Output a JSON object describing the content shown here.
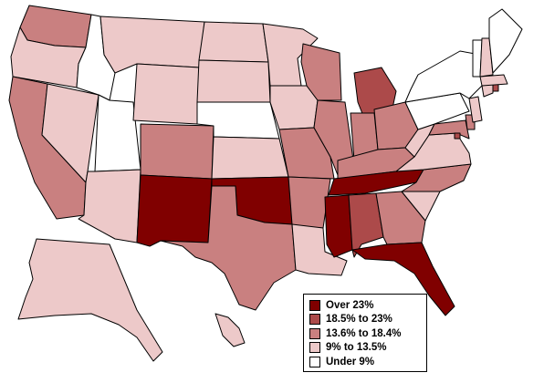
{
  "colors": {
    "over_23": "#800000",
    "r18_23": "#ac4a4a",
    "r13_18": "#c98080",
    "r9_13": "#edc9c9",
    "under_9": "#ffffff"
  },
  "legend": {
    "items": [
      {
        "label": "Over 23%",
        "color": "#800000"
      },
      {
        "label": "18.5% to 23%",
        "color": "#ac4a4a"
      },
      {
        "label": "13.6% to 18.4%",
        "color": "#c98080"
      },
      {
        "label": "9% to 13.5%",
        "color": "#edc9c9"
      },
      {
        "label": "Under 9%",
        "color": "#ffffff"
      }
    ]
  },
  "states": [
    {
      "name": "WA",
      "category": "r13_18"
    },
    {
      "name": "OR",
      "category": "r9_13"
    },
    {
      "name": "CA",
      "category": "r13_18"
    },
    {
      "name": "NV",
      "category": "r9_13"
    },
    {
      "name": "ID",
      "category": "under_9"
    },
    {
      "name": "UT",
      "category": "under_9"
    },
    {
      "name": "AZ",
      "category": "r9_13"
    },
    {
      "name": "MT",
      "category": "r9_13"
    },
    {
      "name": "WY",
      "category": "r9_13"
    },
    {
      "name": "CO",
      "category": "r13_18"
    },
    {
      "name": "NM",
      "category": "over_23"
    },
    {
      "name": "ND",
      "category": "r9_13"
    },
    {
      "name": "SD",
      "category": "r9_13"
    },
    {
      "name": "NE",
      "category": "under_9"
    },
    {
      "name": "KS",
      "category": "r9_13"
    },
    {
      "name": "OK",
      "category": "over_23"
    },
    {
      "name": "TX",
      "category": "r13_18"
    },
    {
      "name": "MN",
      "category": "r9_13"
    },
    {
      "name": "IA",
      "category": "r9_13"
    },
    {
      "name": "MO",
      "category": "r13_18"
    },
    {
      "name": "AR",
      "category": "r13_18"
    },
    {
      "name": "LA",
      "category": "r9_13"
    },
    {
      "name": "WI",
      "category": "r13_18"
    },
    {
      "name": "IL",
      "category": "r13_18"
    },
    {
      "name": "MI",
      "category": "r18_23"
    },
    {
      "name": "IN",
      "category": "r13_18"
    },
    {
      "name": "OH",
      "category": "r13_18"
    },
    {
      "name": "KY",
      "category": "r13_18"
    },
    {
      "name": "TN",
      "category": "over_23"
    },
    {
      "name": "MS",
      "category": "over_23"
    },
    {
      "name": "AL",
      "category": "r18_23"
    },
    {
      "name": "GA",
      "category": "r13_18"
    },
    {
      "name": "FL",
      "category": "over_23"
    },
    {
      "name": "SC",
      "category": "r9_13"
    },
    {
      "name": "NC",
      "category": "r13_18"
    },
    {
      "name": "VA",
      "category": "r9_13"
    },
    {
      "name": "WV",
      "category": "r9_13"
    },
    {
      "name": "MD",
      "category": "r13_18"
    },
    {
      "name": "DE",
      "category": "r13_18"
    },
    {
      "name": "DC",
      "category": "r18_23"
    },
    {
      "name": "PA",
      "category": "under_9"
    },
    {
      "name": "NJ",
      "category": "r9_13"
    },
    {
      "name": "NY",
      "category": "under_9"
    },
    {
      "name": "CT",
      "category": "r9_13"
    },
    {
      "name": "RI",
      "category": "r18_23"
    },
    {
      "name": "MA",
      "category": "r9_13"
    },
    {
      "name": "VT",
      "category": "under_9"
    },
    {
      "name": "NH",
      "category": "r9_13"
    },
    {
      "name": "ME",
      "category": "under_9"
    },
    {
      "name": "AK",
      "category": "r9_13"
    },
    {
      "name": "HI",
      "category": "r9_13"
    }
  ]
}
